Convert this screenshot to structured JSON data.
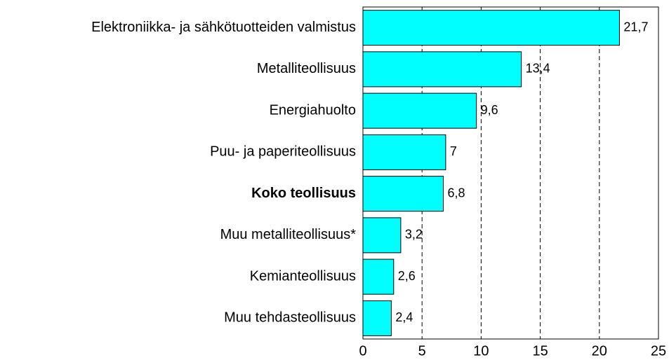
{
  "chart_data": {
    "type": "barh",
    "categories": [
      "Elektroniikka- ja sähkötuotteiden valmistus",
      "Metalliteollisuus",
      "Energiahuolto",
      "Puu- ja paperiteollisuus",
      "Koko teollisuus",
      "Muu metalliteollisuus*",
      "Kemianteollisuus",
      "Muu tehdasteollisuus"
    ],
    "values": [
      21.7,
      13.4,
      9.6,
      7,
      6.8,
      3.2,
      2.6,
      2.4
    ],
    "value_labels": [
      "21,7",
      "13,4",
      "9,6",
      "7",
      "6,8",
      "3,2",
      "2,6",
      "2,4"
    ],
    "color": "#00ffff",
    "bold_category_index": 4,
    "xlim": [
      0,
      25
    ],
    "xticks": [
      0,
      5,
      10,
      15,
      20,
      25
    ],
    "grid": true
  }
}
